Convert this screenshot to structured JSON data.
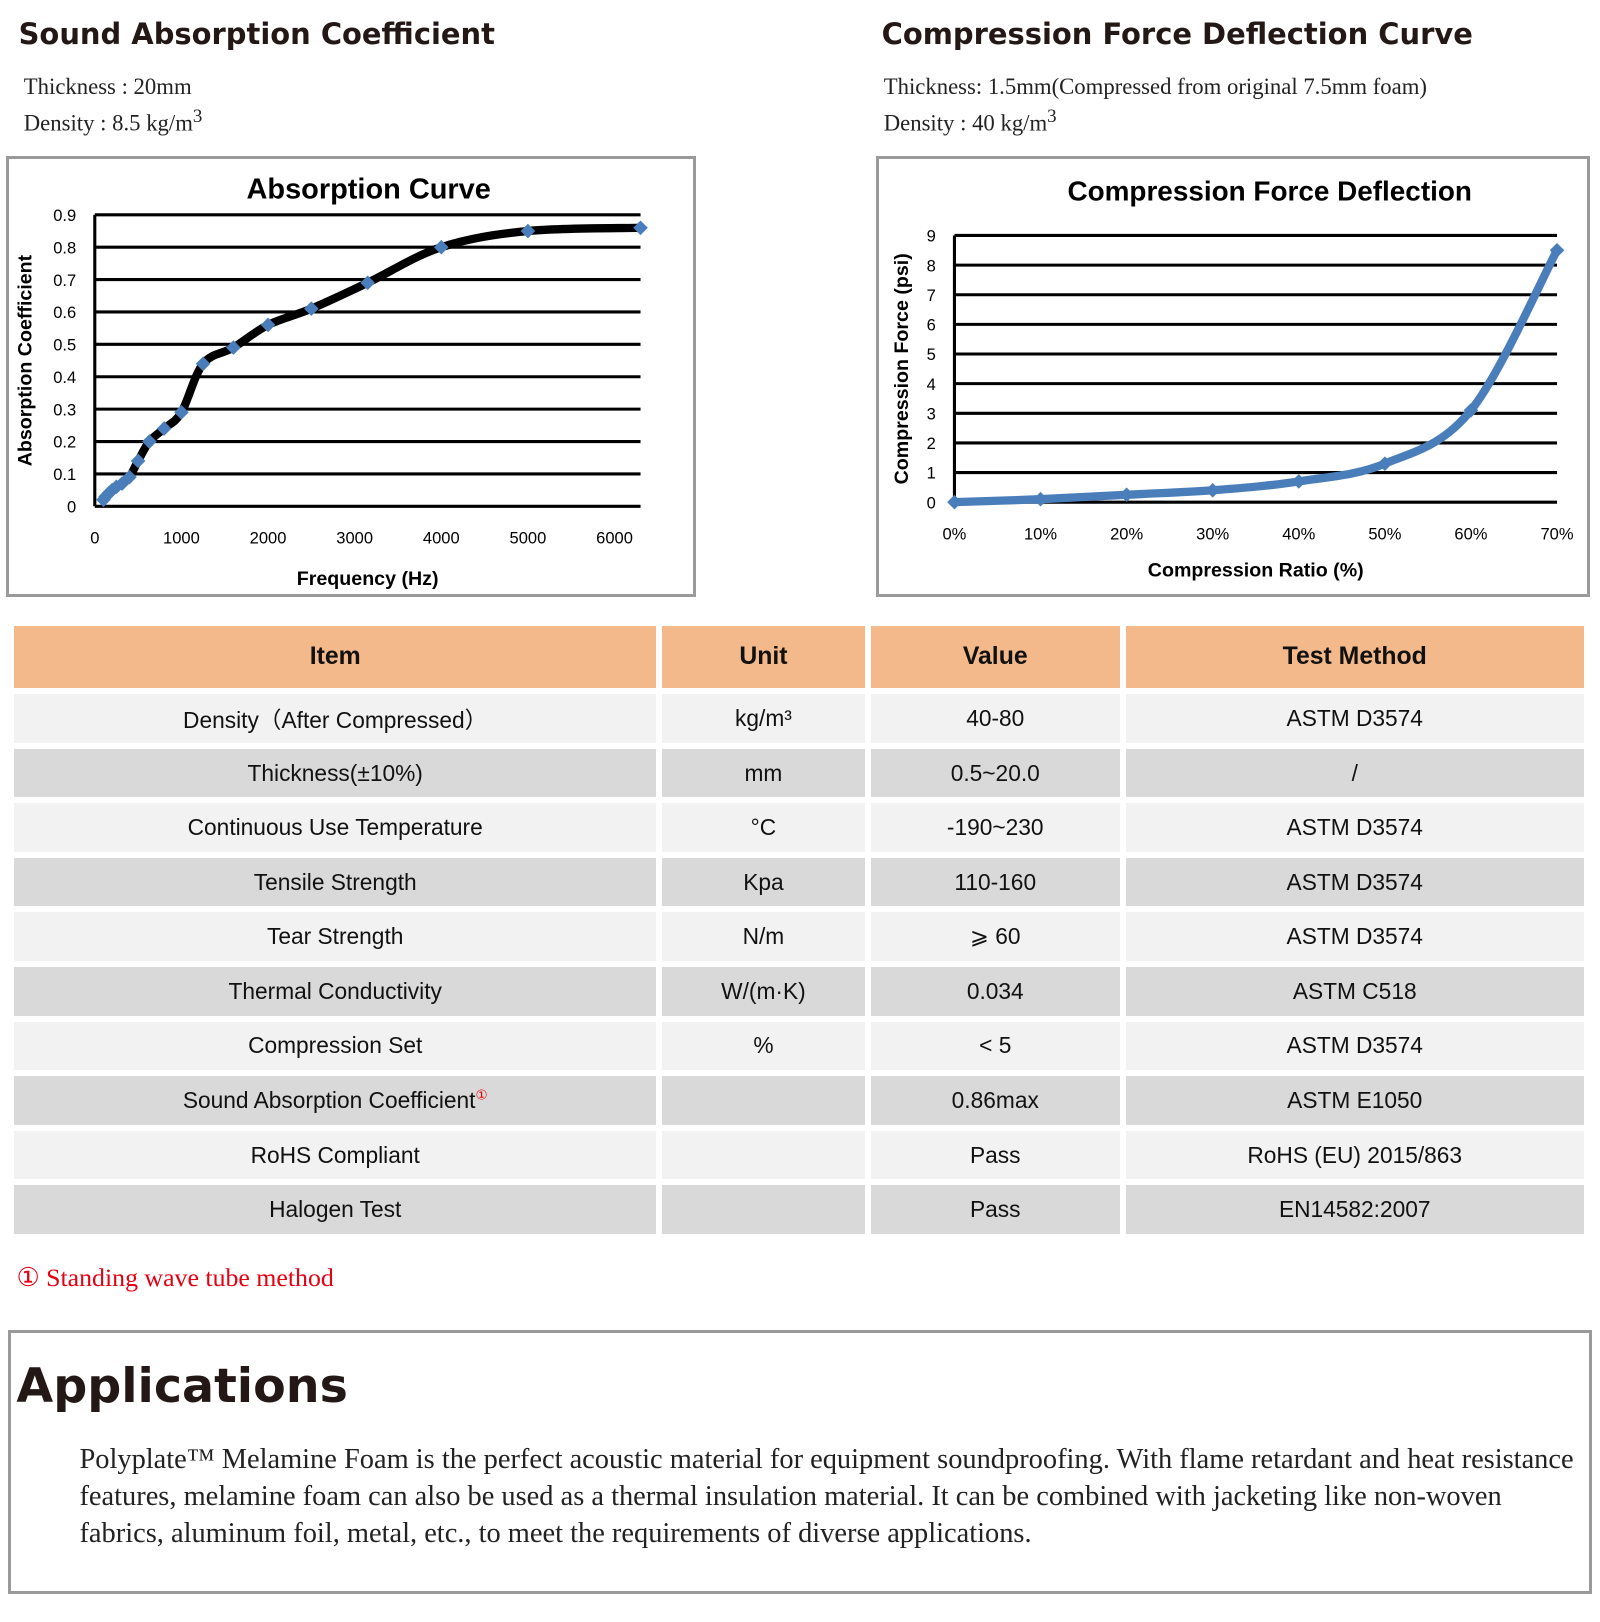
{
  "left": {
    "title": "Sound Absorption Coefficient",
    "thickness": "Thickness : 20mm",
    "density": "Density : 8.5 kg/m",
    "density_sup": "3"
  },
  "right": {
    "title": "Compression Force Deflection Curve",
    "thickness": "Thickness: 1.5mm(Compressed from original 7.5mm foam)",
    "density": "Density : 40 kg/m",
    "density_sup": "3"
  },
  "chart_data": [
    {
      "type": "line",
      "title": "Absorption Curve",
      "xlabel": "Frequency (Hz)",
      "ylabel": "Absorption Coefficient",
      "xlim": [
        0,
        6300
      ],
      "ylim": [
        0,
        0.9
      ],
      "xticks": [
        "0",
        "1000",
        "2000",
        "3000",
        "4000",
        "5000",
        "6000"
      ],
      "yticks": [
        "0",
        "0.1",
        "0.2",
        "0.3",
        "0.4",
        "0.5",
        "0.6",
        "0.7",
        "0.8",
        "0.9"
      ],
      "grid": true,
      "line_color": "#000000",
      "marker_color": "#4a7ebb",
      "x": [
        100,
        125,
        160,
        200,
        250,
        315,
        400,
        500,
        630,
        800,
        1000,
        1250,
        1600,
        2000,
        2500,
        3150,
        4000,
        5000,
        6300
      ],
      "y": [
        0.02,
        0.03,
        0.04,
        0.05,
        0.06,
        0.07,
        0.09,
        0.14,
        0.2,
        0.24,
        0.29,
        0.44,
        0.49,
        0.56,
        0.61,
        0.69,
        0.8,
        0.85,
        0.86
      ]
    },
    {
      "type": "line",
      "title": "Compression Force Deflection",
      "xlabel": "Compression Ratio (%)",
      "ylabel": "Compression Force  (psi)",
      "xlim": [
        0,
        70
      ],
      "ylim": [
        0,
        9
      ],
      "xticks": [
        "0%",
        "10%",
        "20%",
        "30%",
        "40%",
        "50%",
        "60%",
        "70%"
      ],
      "yticks": [
        "0",
        "1",
        "2",
        "3",
        "4",
        "5",
        "6",
        "7",
        "8",
        "9"
      ],
      "grid": true,
      "line_color": "#4a7ebb",
      "marker_color": "#4a7ebb",
      "x": [
        0,
        10,
        20,
        30,
        40,
        50,
        60,
        70
      ],
      "y": [
        0,
        0.1,
        0.25,
        0.4,
        0.7,
        1.3,
        3.1,
        8.5
      ]
    }
  ],
  "table": {
    "headers": [
      "Item",
      "Unit",
      "Value",
      "Test Method"
    ],
    "rows": [
      [
        "Density（After Compressed）",
        "kg/m³",
        "40-80",
        "ASTM D3574"
      ],
      [
        "Thickness(±10%)",
        "mm",
        "0.5~20.0",
        "/"
      ],
      [
        "Continuous Use Temperature",
        "°C",
        "-190~230",
        "ASTM D3574"
      ],
      [
        "Tensile Strength",
        "Kpa",
        "110-160",
        "ASTM D3574"
      ],
      [
        "Tear Strength",
        "N/m",
        "⩾ 60",
        "ASTM D3574"
      ],
      [
        "Thermal Conductivity",
        "W/(m·K)",
        "0.034",
        "ASTM C518"
      ],
      [
        "Compression Set",
        "%",
        "< 5",
        "ASTM D3574"
      ],
      [
        "Sound Absorption Coefficient",
        "",
        "0.86max",
        "ASTM E1050"
      ],
      [
        "RoHS Compliant",
        "",
        "Pass",
        "RoHS (EU) 2015/863"
      ],
      [
        "Halogen Test",
        "",
        "Pass",
        "EN14582:2007"
      ]
    ],
    "note_mark": "①"
  },
  "footnote": "①  Standing wave tube method",
  "applications": {
    "title": "Applications",
    "text": "Polyplate™ Melamine Foam is the perfect acoustic material for equipment soundproofing. With flame retardant and heat resistance features, melamine foam can also be used as a thermal insulation material. It can be combined with jacketing like non-woven fabrics, aluminum foil, metal, etc., to meet the requirements of diverse applications."
  }
}
